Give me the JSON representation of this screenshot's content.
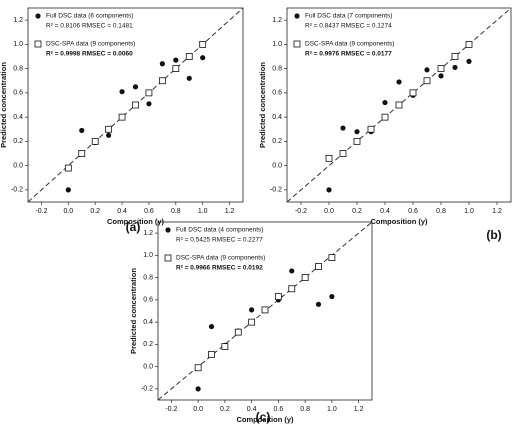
{
  "chart_data": [
    {
      "type": "scatter",
      "label": "(a)",
      "x_label": "Composition (y)",
      "y_label": "Predicted concentration",
      "xlim": [
        -0.3,
        1.3
      ],
      "ylim": [
        -0.3,
        1.3
      ],
      "identity_line": true,
      "xticks": [
        -0.2,
        {
          "value": 0,
          "label": "0.0"
        },
        0.2,
        0.4,
        0.6,
        0.8,
        {
          "value": 1,
          "label": "1.0"
        },
        1.2
      ],
      "yticks": [
        -0.2,
        {
          "value": 0,
          "label": "0.0"
        },
        0.2,
        0.4,
        0.6,
        0.8,
        {
          "value": 1,
          "label": "1.0"
        },
        1.2
      ],
      "series": [
        {
          "name": "Full DSC data (6 components)",
          "stats": "R² = 0.8106  RMSEC = 0.1481",
          "marker": "filled-circle",
          "color": "#111",
          "x": [
            0,
            0.1,
            0.2,
            0.3,
            0.4,
            0.5,
            0.6,
            0.7,
            0.8,
            0.9,
            1.0
          ],
          "values": [
            -0.2,
            0.29,
            0.19,
            0.25,
            0.61,
            0.65,
            0.51,
            0.84,
            0.87,
            0.72,
            0.89
          ]
        },
        {
          "name": "DSC-SPA data (9 components)",
          "stats": "R² = 0.9998  RMSEC = 0.0060",
          "marker": "open-square",
          "color": "#111",
          "x": [
            0,
            0.1,
            0.2,
            0.3,
            0.4,
            0.5,
            0.6,
            0.7,
            0.8,
            0.9,
            1.0
          ],
          "values": [
            -0.02,
            0.1,
            0.2,
            0.3,
            0.4,
            0.5,
            0.6,
            0.7,
            0.8,
            0.9,
            1.0
          ]
        }
      ]
    },
    {
      "type": "scatter",
      "label": "(b)",
      "x_label": "Composition (y)",
      "y_label": "Predicted concentration",
      "xlim": [
        -0.3,
        1.3
      ],
      "ylim": [
        -0.3,
        1.3
      ],
      "identity_line": true,
      "xticks": [
        -0.2,
        {
          "value": 0,
          "label": "0.0"
        },
        0.2,
        0.4,
        0.6,
        0.8,
        {
          "value": 1,
          "label": "1.0"
        },
        1.2
      ],
      "yticks": [
        -0.2,
        {
          "value": 0,
          "label": "0.0"
        },
        0.2,
        0.4,
        0.6,
        0.8,
        {
          "value": 1,
          "label": "1.0"
        },
        1.2
      ],
      "series": [
        {
          "name": "Full DSC data (7 components)",
          "stats": "R² = 0.8437  RMSEC = 0.1274",
          "marker": "filled-circle",
          "color": "#111",
          "x": [
            0,
            0.1,
            0.2,
            0.3,
            0.4,
            0.5,
            0.6,
            0.7,
            0.8,
            0.9,
            1.0
          ],
          "values": [
            -0.2,
            0.31,
            0.28,
            0.28,
            0.52,
            0.69,
            0.58,
            0.79,
            0.74,
            0.81,
            0.86
          ]
        },
        {
          "name": "DSC-SPA data (9 components)",
          "stats": "R² = 0.9976  RMSEC = 0.0177",
          "marker": "open-square",
          "color": "#111",
          "x": [
            0,
            0.1,
            0.2,
            0.3,
            0.4,
            0.5,
            0.6,
            0.7,
            0.8,
            0.9,
            1.0
          ],
          "values": [
            0.06,
            0.1,
            0.2,
            0.3,
            0.4,
            0.5,
            0.6,
            0.7,
            0.8,
            0.9,
            1.0
          ]
        }
      ]
    },
    {
      "type": "scatter",
      "label": "(c)",
      "x_label": "Composition (y)",
      "y_label": "Predicted concentration",
      "xlim": [
        -0.3,
        1.3
      ],
      "ylim": [
        -0.3,
        1.3
      ],
      "identity_line": true,
      "xticks": [
        -0.2,
        {
          "value": 0,
          "label": "0.0"
        },
        0.2,
        0.4,
        0.6,
        0.8,
        {
          "value": 1,
          "label": "1.0"
        },
        1.2
      ],
      "yticks": [
        -0.2,
        {
          "value": 0,
          "label": "0.0"
        },
        0.2,
        0.4,
        0.6,
        0.8,
        {
          "value": 1,
          "label": "1.0"
        },
        1.2
      ],
      "series": [
        {
          "name": "Full DSC data (4 components)",
          "stats": "R² = 0.5425  RMSEC = 0.2277",
          "marker": "filled-circle",
          "color": "#111",
          "x": [
            0,
            0.1,
            0.2,
            0.3,
            0.4,
            0.5,
            0.6,
            0.7,
            0.9,
            1.0
          ],
          "values": [
            -0.2,
            0.36,
            0.19,
            0.32,
            0.51,
            0.51,
            0.6,
            0.86,
            0.56,
            0.63
          ]
        },
        {
          "name": "DSC-SPA data (9 components)",
          "stats": "R² = 0.9966  RMSEC = 0.0192",
          "marker": "open-square",
          "color": "#111",
          "x": [
            0,
            0.1,
            0.2,
            0.3,
            0.4,
            0.5,
            0.6,
            0.7,
            0.8,
            0.9,
            1.0
          ],
          "values": [
            -0.01,
            0.11,
            0.18,
            0.31,
            0.4,
            0.51,
            0.63,
            0.7,
            0.8,
            0.9,
            0.98
          ]
        }
      ]
    }
  ]
}
